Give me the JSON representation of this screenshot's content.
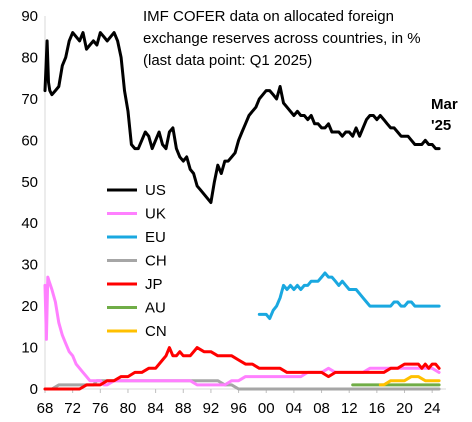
{
  "chart_data": {
    "type": "line",
    "title_lines": [
      "IMF COFER data on allocated foreign",
      "exchange reserves across countries, in %",
      "(last data point: Q1 2025)"
    ],
    "annotation_lines": [
      "Mar",
      "'25"
    ],
    "xlabel": "",
    "ylabel": "",
    "xlim": [
      1968,
      2026
    ],
    "ylim": [
      0,
      90
    ],
    "x_ticks": [
      1968,
      1972,
      1976,
      1980,
      1984,
      1988,
      1992,
      1996,
      2000,
      2004,
      2008,
      2012,
      2016,
      2020,
      2024
    ],
    "x_tick_labels": [
      "68",
      "72",
      "76",
      "80",
      "84",
      "88",
      "92",
      "96",
      "00",
      "04",
      "08",
      "12",
      "16",
      "20",
      "24"
    ],
    "y_ticks": [
      0,
      10,
      20,
      30,
      40,
      50,
      60,
      70,
      80,
      90
    ],
    "y_tick_labels": [
      "0",
      "10",
      "20",
      "30",
      "40",
      "50",
      "60",
      "70",
      "80",
      "90"
    ],
    "grid": false,
    "legend_position": "center-left",
    "series": [
      {
        "name": "US",
        "color": "#000000",
        "x": [
          1968,
          1968.3,
          1968.5,
          1968.7,
          1969,
          1969.5,
          1970,
          1970.5,
          1971,
          1971.5,
          1972,
          1972.5,
          1973,
          1973.5,
          1974,
          1974.5,
          1975,
          1975.5,
          1976,
          1976.5,
          1977,
          1977.5,
          1978,
          1978.5,
          1979,
          1979.5,
          1980,
          1980.5,
          1981,
          1981.5,
          1982,
          1982.5,
          1983,
          1983.5,
          1984,
          1984.5,
          1985,
          1985.5,
          1986,
          1986.5,
          1987,
          1987.5,
          1988,
          1988.5,
          1989,
          1989.5,
          1990,
          1990.5,
          1991,
          1991.5,
          1992,
          1992.5,
          1993,
          1993.5,
          1994,
          1994.5,
          1995,
          1995.5,
          1996,
          1996.5,
          1997,
          1997.5,
          1998,
          1998.5,
          1999,
          1999.5,
          2000,
          2000.5,
          2001,
          2001.5,
          2002,
          2002.5,
          2003,
          2003.5,
          2004,
          2004.5,
          2005,
          2005.5,
          2006,
          2006.5,
          2007,
          2007.5,
          2008,
          2008.5,
          2009,
          2009.5,
          2010,
          2010.5,
          2011,
          2011.5,
          2012,
          2012.5,
          2013,
          2013.5,
          2014,
          2014.5,
          2015,
          2015.5,
          2016,
          2016.5,
          2017,
          2017.5,
          2018,
          2018.5,
          2019,
          2019.5,
          2020,
          2020.5,
          2021,
          2021.5,
          2022,
          2022.5,
          2023,
          2023.5,
          2024,
          2024.5,
          2025
        ],
        "values": [
          72,
          84,
          74,
          72,
          71,
          72,
          73,
          78,
          80,
          84,
          86,
          85,
          84,
          86,
          82,
          83,
          84,
          83,
          86,
          85,
          84,
          85,
          86,
          84,
          80,
          72,
          67,
          59,
          58,
          58,
          60,
          62,
          61,
          58,
          60,
          62,
          59,
          58,
          62,
          63,
          58,
          56,
          55,
          56,
          53,
          52,
          49,
          48,
          47,
          46,
          45,
          50,
          54,
          52,
          55,
          55,
          56,
          57,
          60,
          62,
          64,
          66,
          67,
          68,
          70,
          71,
          72,
          72,
          71,
          70,
          73,
          69,
          68,
          67,
          66,
          67,
          66,
          66,
          65,
          66,
          64,
          64,
          63,
          63,
          64,
          62,
          62,
          62,
          61,
          62,
          62,
          61,
          63,
          61,
          63,
          65,
          66,
          66,
          65,
          66,
          65,
          64,
          63,
          63,
          62,
          61,
          61,
          61,
          60,
          59,
          59,
          59,
          60,
          59,
          59,
          58,
          58
        ]
      },
      {
        "name": "UK",
        "color": "#ff80ff",
        "x": [
          1968,
          1968.2,
          1968.4,
          1968.6,
          1969,
          1969.5,
          1970,
          1970.5,
          1971,
          1971.5,
          1972,
          1972.5,
          1973,
          1973.5,
          1974,
          1974.5,
          1975,
          1975.5,
          1976,
          1976.5,
          1977,
          1978,
          1979,
          1980,
          1981,
          1982,
          1983,
          1984,
          1985,
          1986,
          1987,
          1988,
          1989,
          1990,
          1991,
          1992,
          1993,
          1994,
          1995,
          1996,
          1997,
          1998,
          1999,
          2000,
          2001,
          2002,
          2003,
          2004,
          2005,
          2006,
          2007,
          2008,
          2009,
          2010,
          2011,
          2012,
          2013,
          2014,
          2015,
          2016,
          2017,
          2018,
          2019,
          2020,
          2021,
          2022,
          2023,
          2024,
          2025
        ],
        "values": [
          25,
          12,
          27,
          26,
          24,
          21,
          16,
          13,
          11,
          9,
          8,
          6,
          5,
          4,
          3,
          2,
          2,
          2,
          2,
          1,
          1,
          2,
          2,
          2,
          2,
          2,
          2,
          2,
          2,
          2,
          2,
          2,
          2,
          1,
          1,
          1,
          1,
          1,
          2,
          2,
          3,
          3,
          3,
          3,
          3,
          3,
          3,
          3,
          3,
          4,
          4,
          4,
          5,
          4,
          4,
          4,
          4,
          4,
          5,
          5,
          5,
          5,
          5,
          5,
          5,
          5,
          5,
          5,
          4
        ]
      },
      {
        "name": "EU",
        "color": "#1aa8e0",
        "x": [
          1999,
          1999.5,
          2000,
          2000.5,
          2001,
          2001.5,
          2002,
          2002.5,
          2003,
          2003.5,
          2004,
          2004.5,
          2005,
          2005.5,
          2006,
          2006.5,
          2007,
          2007.5,
          2008,
          2008.5,
          2009,
          2009.5,
          2010,
          2010.5,
          2011,
          2011.5,
          2012,
          2012.5,
          2013,
          2013.5,
          2014,
          2014.5,
          2015,
          2015.5,
          2016,
          2016.5,
          2017,
          2017.5,
          2018,
          2018.5,
          2019,
          2019.5,
          2020,
          2020.5,
          2021,
          2021.5,
          2022,
          2022.5,
          2023,
          2023.5,
          2024,
          2024.5,
          2025
        ],
        "values": [
          18,
          18,
          18,
          17,
          19,
          20,
          22,
          25,
          24,
          25,
          24,
          25,
          24,
          25,
          25,
          26,
          26,
          26,
          27,
          28,
          27,
          27,
          26,
          25,
          26,
          25,
          24,
          24,
          24,
          23,
          22,
          21,
          20,
          20,
          20,
          20,
          20,
          20,
          20,
          21,
          21,
          20,
          20,
          21,
          21,
          20,
          20,
          20,
          20,
          20,
          20,
          20,
          20
        ]
      },
      {
        "name": "CH",
        "color": "#a6a6a6",
        "x": [
          1968,
          1969,
          1970,
          1971,
          1972,
          1973,
          1974,
          1975,
          1975.5,
          1976,
          1977,
          1978,
          1979,
          1980,
          1981,
          1982,
          1983,
          1984,
          1985,
          1986,
          1987,
          1988,
          1989,
          1990,
          1991,
          1992,
          1993,
          1994,
          1995,
          1996,
          1997,
          1998,
          1999,
          2000,
          2002,
          2004,
          2006,
          2008,
          2010,
          2012,
          2014,
          2016,
          2018,
          2020,
          2022,
          2024,
          2025
        ],
        "values": [
          0,
          0,
          1,
          1,
          1,
          1,
          1,
          1,
          2,
          2,
          2,
          2,
          2,
          2,
          2,
          2,
          2,
          2,
          2,
          2,
          2,
          2,
          2,
          2,
          2,
          2,
          2,
          1,
          1,
          0,
          0,
          0,
          0,
          0,
          0,
          0,
          0,
          0,
          0,
          0,
          0,
          0,
          0,
          0,
          0,
          0,
          0
        ]
      },
      {
        "name": "JP",
        "color": "#ff0000",
        "x": [
          1968,
          1970,
          1972,
          1973,
          1974,
          1975,
          1976,
          1977,
          1978,
          1979,
          1980,
          1981,
          1982,
          1983,
          1984,
          1985,
          1985.5,
          1986,
          1986.5,
          1987,
          1987.5,
          1988,
          1989,
          1990,
          1991,
          1992,
          1993,
          1994,
          1995,
          1996,
          1997,
          1998,
          1999,
          2000,
          2001,
          2002,
          2003,
          2004,
          2005,
          2006,
          2007,
          2008,
          2009,
          2010,
          2011,
          2012,
          2013,
          2014,
          2015,
          2016,
          2017,
          2018,
          2019,
          2020,
          2021,
          2022,
          2022.5,
          2023,
          2023.5,
          2024,
          2024.5,
          2025
        ],
        "values": [
          0,
          0,
          0,
          0,
          1,
          1,
          1,
          2,
          2,
          3,
          3,
          4,
          4,
          5,
          5,
          7,
          8,
          10,
          8,
          8,
          9,
          8,
          8,
          10,
          9,
          9,
          8,
          8,
          8,
          7,
          6,
          6,
          5,
          5,
          5,
          5,
          4,
          4,
          4,
          4,
          4,
          4,
          3,
          4,
          4,
          4,
          4,
          4,
          4,
          4,
          4,
          5,
          5,
          6,
          6,
          6,
          5,
          6,
          5,
          6,
          6,
          5
        ]
      },
      {
        "name": "AU",
        "color": "#70ad47",
        "x": [
          2012.5,
          2014,
          2016,
          2018,
          2020,
          2022,
          2024,
          2024.5,
          2025
        ],
        "values": [
          1,
          1,
          1,
          1,
          1,
          1,
          1,
          1,
          1
        ]
      },
      {
        "name": "CN",
        "color": "#ffc000",
        "x": [
          2016.5,
          2017,
          2018,
          2019,
          2020,
          2021,
          2022,
          2023,
          2024,
          2025
        ],
        "values": [
          1,
          1,
          2,
          2,
          2,
          3,
          3,
          2,
          2,
          2
        ]
      }
    ]
  }
}
